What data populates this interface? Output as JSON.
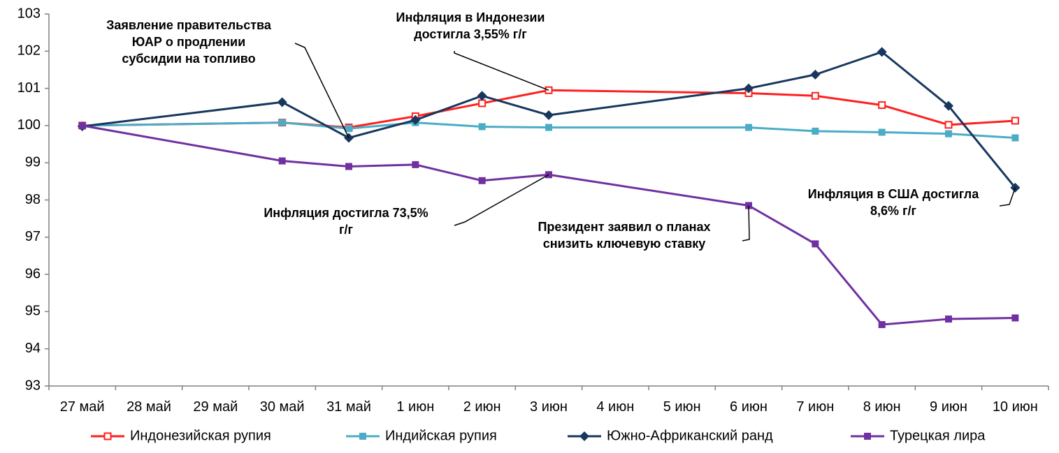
{
  "chart_data": {
    "type": "line",
    "title": "",
    "xlabel": "",
    "ylabel": "",
    "ylim": [
      93,
      103
    ],
    "yticks": [
      "93",
      "94",
      "95",
      "96",
      "97",
      "98",
      "99",
      "100",
      "101",
      "102",
      "103"
    ],
    "categories": [
      "27 май",
      "28 май",
      "29 май",
      "30 май",
      "31 май",
      "1 июн",
      "2 июн",
      "3 июн",
      "4 июн",
      "5 июн",
      "6 июн",
      "7 июн",
      "8 июн",
      "9 июн",
      "10 июн"
    ],
    "grid": false,
    "legend_position": "bottom",
    "series": [
      {
        "name": "Индонезийская рупия",
        "color": "#ff2020",
        "marker": "square-open",
        "points": [
          [
            0,
            100.0
          ],
          [
            3,
            100.08
          ],
          [
            4,
            99.95
          ],
          [
            5,
            100.25
          ],
          [
            6,
            100.6
          ],
          [
            7,
            100.95
          ],
          [
            10,
            100.87
          ],
          [
            11,
            100.8
          ],
          [
            12,
            100.55
          ],
          [
            13,
            100.02
          ],
          [
            14,
            100.13
          ]
        ]
      },
      {
        "name": "Индийская рупия",
        "color": "#4bacc6",
        "marker": "square",
        "points": [
          [
            0,
            100.0
          ],
          [
            3,
            100.08
          ],
          [
            4,
            99.92
          ],
          [
            5,
            100.08
          ],
          [
            6,
            99.97
          ],
          [
            7,
            99.95
          ],
          [
            10,
            99.95
          ],
          [
            11,
            99.85
          ],
          [
            12,
            99.82
          ],
          [
            13,
            99.78
          ],
          [
            14,
            99.67
          ]
        ]
      },
      {
        "name": "Южно-Африканский ранд",
        "color": "#17375e",
        "marker": "diamond",
        "points": [
          [
            0,
            99.98
          ],
          [
            3,
            100.63
          ],
          [
            4,
            99.67
          ],
          [
            5,
            100.15
          ],
          [
            6,
            100.8
          ],
          [
            7,
            100.28
          ],
          [
            10,
            101.0
          ],
          [
            11,
            101.37
          ],
          [
            12,
            101.98
          ],
          [
            13,
            100.53
          ],
          [
            14,
            98.33
          ]
        ]
      },
      {
        "name": "Турецкая лира",
        "color": "#7030a0",
        "marker": "square",
        "points": [
          [
            0,
            100.0
          ],
          [
            3,
            99.05
          ],
          [
            4,
            98.9
          ],
          [
            5,
            98.95
          ],
          [
            6,
            98.52
          ],
          [
            7,
            98.68
          ],
          [
            10,
            97.85
          ],
          [
            11,
            96.82
          ],
          [
            12,
            94.65
          ],
          [
            13,
            94.8
          ],
          [
            14,
            94.83
          ]
        ]
      }
    ],
    "annotations": [
      {
        "lines": [
          "Заявление правительства",
          "ЮАР о продлении",
          "субсидии на топливо"
        ],
        "target": [
          4,
          99.67
        ]
      },
      {
        "lines": [
          "Инфляция в Индонезии",
          "достигла 3,55% г/г"
        ],
        "target": [
          7,
          100.95
        ]
      },
      {
        "lines": [
          "Инфляция достигла 73,5%",
          "г/г"
        ],
        "target": [
          7,
          98.68
        ]
      },
      {
        "lines": [
          "Президент заявил о планах",
          "снизить ключевую ставку"
        ],
        "target": [
          10,
          97.85
        ]
      },
      {
        "lines": [
          "Инфляция в США достигла",
          "8,6% г/г"
        ],
        "target": [
          14,
          98.33
        ]
      }
    ]
  }
}
